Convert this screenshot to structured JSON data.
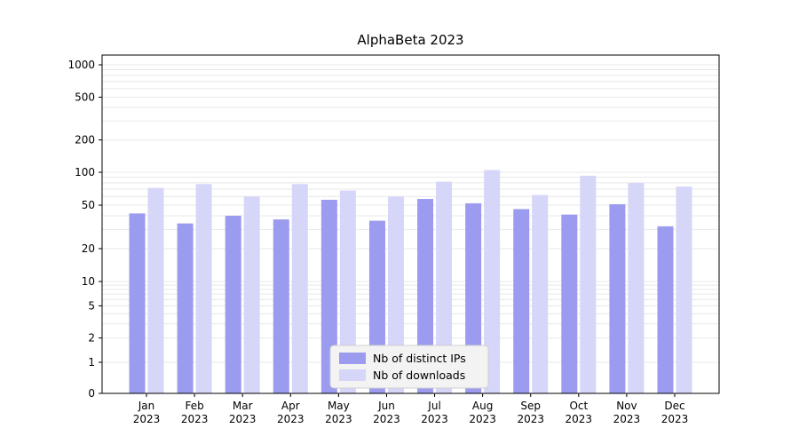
{
  "chart_data": {
    "type": "bar",
    "title": "AlphaBeta 2023",
    "categories": [
      "Jan",
      "Feb",
      "Mar",
      "Apr",
      "May",
      "Jun",
      "Jul",
      "Aug",
      "Sep",
      "Oct",
      "Nov",
      "Dec"
    ],
    "category_year": "2023",
    "series": [
      {
        "name": "Nb of distinct IPs",
        "color": "#9b9bef",
        "values": [
          42,
          34,
          40,
          37,
          56,
          36,
          57,
          52,
          46,
          41,
          51,
          32
        ]
      },
      {
        "name": "Nb of downloads",
        "color": "#d6d6f8",
        "values": [
          72,
          78,
          60,
          78,
          68,
          60,
          82,
          105,
          62,
          93,
          80,
          74
        ]
      }
    ],
    "yscale": "symlog",
    "ylim": [
      0,
      1000
    ],
    "ytick_labels": [
      1000,
      500,
      200,
      100,
      50,
      20,
      10,
      5,
      2,
      1,
      0
    ],
    "grid": "on",
    "legend_position": "lower center",
    "colors": {
      "gridline": "#e8e8e8",
      "axis": "#000000",
      "legend_bg": "#f3f3f3",
      "legend_border": "#cfcfcf"
    }
  }
}
